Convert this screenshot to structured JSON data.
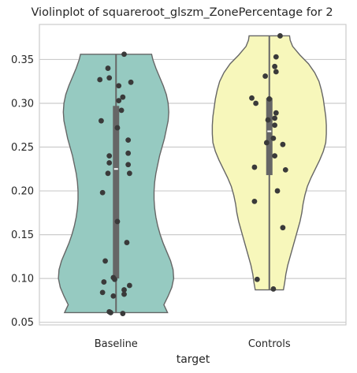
{
  "chart_data": {
    "type": "violin",
    "title": "Violinplot of squareroot_glszm_ZonePercentage for 2",
    "xlabel": "target",
    "ylabel": "",
    "categories": [
      "Baseline",
      "Controls"
    ],
    "ylim": [
      0.047,
      0.39
    ],
    "yticks": [
      0.05,
      0.1,
      0.15,
      0.2,
      0.25,
      0.3,
      0.35
    ],
    "ytick_labels": [
      "0.05",
      "0.10",
      "0.15",
      "0.20",
      "0.25",
      "0.30",
      "0.35"
    ],
    "grid": true,
    "series": [
      {
        "category": "Baseline",
        "color": "#96cac1",
        "cut": [
          0.061,
          0.356
        ],
        "median": 0.225,
        "q1": 0.1,
        "q3": 0.297,
        "whisker": [
          0.061,
          0.356
        ],
        "density": [
          [
            0.061,
            0.84
          ],
          [
            0.07,
            0.78
          ],
          [
            0.08,
            0.85
          ],
          [
            0.09,
            0.91
          ],
          [
            0.1,
            0.94
          ],
          [
            0.11,
            0.93
          ],
          [
            0.12,
            0.89
          ],
          [
            0.13,
            0.83
          ],
          [
            0.14,
            0.77
          ],
          [
            0.15,
            0.72
          ],
          [
            0.16,
            0.68
          ],
          [
            0.17,
            0.65
          ],
          [
            0.18,
            0.63
          ],
          [
            0.19,
            0.62
          ],
          [
            0.2,
            0.62
          ],
          [
            0.21,
            0.63
          ],
          [
            0.22,
            0.65
          ],
          [
            0.23,
            0.68
          ],
          [
            0.24,
            0.71
          ],
          [
            0.25,
            0.75
          ],
          [
            0.26,
            0.79
          ],
          [
            0.27,
            0.82
          ],
          [
            0.28,
            0.85
          ],
          [
            0.29,
            0.86
          ],
          [
            0.3,
            0.85
          ],
          [
            0.31,
            0.82
          ],
          [
            0.32,
            0.77
          ],
          [
            0.33,
            0.71
          ],
          [
            0.34,
            0.65
          ],
          [
            0.35,
            0.6
          ],
          [
            0.356,
            0.58
          ]
        ],
        "points": [
          {
            "x": 0.6,
            "y": 0.356
          },
          {
            "x": -0.6,
            "y": 0.34
          },
          {
            "x": -1.2,
            "y": 0.327
          },
          {
            "x": -0.5,
            "y": 0.329
          },
          {
            "x": 1.1,
            "y": 0.324
          },
          {
            "x": 0.2,
            "y": 0.32
          },
          {
            "x": 0.5,
            "y": 0.307
          },
          {
            "x": 0.2,
            "y": 0.303
          },
          {
            "x": 0.4,
            "y": 0.292
          },
          {
            "x": -1.1,
            "y": 0.28
          },
          {
            "x": 0.1,
            "y": 0.272
          },
          {
            "x": 0.9,
            "y": 0.258
          },
          {
            "x": 0.9,
            "y": 0.243
          },
          {
            "x": -0.5,
            "y": 0.24
          },
          {
            "x": -0.5,
            "y": 0.232
          },
          {
            "x": 0.9,
            "y": 0.23
          },
          {
            "x": -0.6,
            "y": 0.22
          },
          {
            "x": 1.0,
            "y": 0.22
          },
          {
            "x": -1.0,
            "y": 0.198
          },
          {
            "x": 0.1,
            "y": 0.165
          },
          {
            "x": 0.8,
            "y": 0.141
          },
          {
            "x": -0.8,
            "y": 0.12
          },
          {
            "x": -0.2,
            "y": 0.101
          },
          {
            "x": -0.1,
            "y": 0.099
          },
          {
            "x": -0.9,
            "y": 0.096
          },
          {
            "x": 1.0,
            "y": 0.092
          },
          {
            "x": 0.6,
            "y": 0.087
          },
          {
            "x": -1.0,
            "y": 0.084
          },
          {
            "x": 0.6,
            "y": 0.082
          },
          {
            "x": -0.2,
            "y": 0.08
          },
          {
            "x": -0.5,
            "y": 0.062
          },
          {
            "x": -0.4,
            "y": 0.061
          },
          {
            "x": 0.5,
            "y": 0.06
          }
        ]
      },
      {
        "category": "Controls",
        "color": "#f7f7bb",
        "cut": [
          0.087,
          0.377
        ],
        "median": 0.268,
        "q1": 0.218,
        "q3": 0.306,
        "whisker": [
          0.087,
          0.377
        ],
        "density": [
          [
            0.087,
            0.23
          ],
          [
            0.095,
            0.25
          ],
          [
            0.105,
            0.27
          ],
          [
            0.115,
            0.3
          ],
          [
            0.125,
            0.34
          ],
          [
            0.135,
            0.38
          ],
          [
            0.145,
            0.42
          ],
          [
            0.155,
            0.46
          ],
          [
            0.165,
            0.5
          ],
          [
            0.175,
            0.53
          ],
          [
            0.185,
            0.55
          ],
          [
            0.195,
            0.58
          ],
          [
            0.205,
            0.62
          ],
          [
            0.215,
            0.68
          ],
          [
            0.225,
            0.75
          ],
          [
            0.235,
            0.82
          ],
          [
            0.245,
            0.88
          ],
          [
            0.255,
            0.92
          ],
          [
            0.265,
            0.93
          ],
          [
            0.275,
            0.93
          ],
          [
            0.285,
            0.92
          ],
          [
            0.295,
            0.9
          ],
          [
            0.305,
            0.88
          ],
          [
            0.315,
            0.85
          ],
          [
            0.325,
            0.81
          ],
          [
            0.335,
            0.74
          ],
          [
            0.345,
            0.64
          ],
          [
            0.355,
            0.5
          ],
          [
            0.365,
            0.38
          ],
          [
            0.372,
            0.34
          ],
          [
            0.377,
            0.33
          ]
        ],
        "points": [
          {
            "x": 0.8,
            "y": 0.377
          },
          {
            "x": 0.5,
            "y": 0.353
          },
          {
            "x": 0.4,
            "y": 0.342
          },
          {
            "x": 0.5,
            "y": 0.336
          },
          {
            "x": -0.3,
            "y": 0.331
          },
          {
            "x": -1.3,
            "y": 0.306
          },
          {
            "x": 0.0,
            "y": 0.305
          },
          {
            "x": -1.0,
            "y": 0.3
          },
          {
            "x": 0.5,
            "y": 0.289
          },
          {
            "x": 0.4,
            "y": 0.283
          },
          {
            "x": -0.1,
            "y": 0.281
          },
          {
            "x": 0.4,
            "y": 0.275
          },
          {
            "x": 0.3,
            "y": 0.26
          },
          {
            "x": -0.2,
            "y": 0.255
          },
          {
            "x": 1.0,
            "y": 0.253
          },
          {
            "x": 0.4,
            "y": 0.24
          },
          {
            "x": -1.1,
            "y": 0.227
          },
          {
            "x": 1.2,
            "y": 0.224
          },
          {
            "x": 0.6,
            "y": 0.2
          },
          {
            "x": -1.1,
            "y": 0.188
          },
          {
            "x": 1.0,
            "y": 0.158
          },
          {
            "x": -0.9,
            "y": 0.099
          },
          {
            "x": 0.3,
            "y": 0.088
          }
        ]
      }
    ]
  }
}
